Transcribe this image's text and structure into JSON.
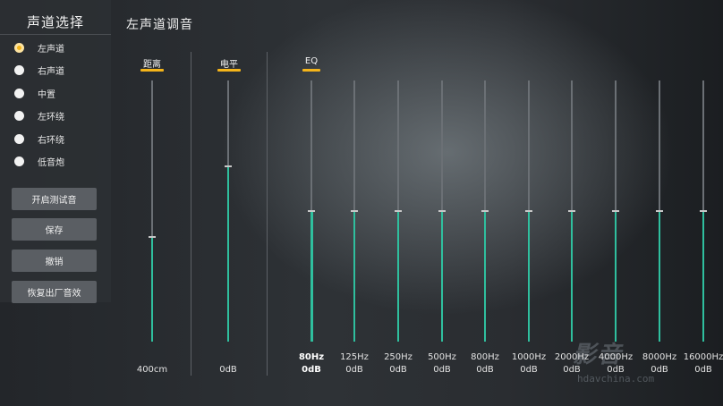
{
  "sidebar": {
    "title": "声道选择",
    "channels": [
      {
        "label": "左声道",
        "selected": true
      },
      {
        "label": "右声道",
        "selected": false
      },
      {
        "label": "中置",
        "selected": false
      },
      {
        "label": "左环绕",
        "selected": false
      },
      {
        "label": "右环绕",
        "selected": false
      },
      {
        "label": "低音炮",
        "selected": false
      }
    ],
    "buttons": [
      "开启测试音",
      "保存",
      "撤销",
      "恢复出厂音效"
    ]
  },
  "page_title": "左声道调音",
  "sections": {
    "distance": {
      "label": "距离",
      "value": "400cm",
      "level": 0.4
    },
    "level": {
      "label": "电平",
      "value": "0dB",
      "level": 0.67
    },
    "eq": {
      "label": "EQ",
      "bands": [
        {
          "freq": "80Hz",
          "value": "0dB",
          "level": 0.5
        },
        {
          "freq": "125Hz",
          "value": "0dB",
          "level": 0.5
        },
        {
          "freq": "250Hz",
          "value": "0dB",
          "level": 0.5
        },
        {
          "freq": "500Hz",
          "value": "0dB",
          "level": 0.5
        },
        {
          "freq": "800Hz",
          "value": "0dB",
          "level": 0.5
        },
        {
          "freq": "1000Hz",
          "value": "0dB",
          "level": 0.5
        },
        {
          "freq": "2000Hz",
          "value": "0dB",
          "level": 0.5
        },
        {
          "freq": "4000Hz",
          "value": "0dB",
          "level": 0.5
        },
        {
          "freq": "8000Hz",
          "value": "0dB",
          "level": 0.5
        },
        {
          "freq": "16000Hz",
          "value": "0dB",
          "level": 0.5
        }
      ]
    }
  },
  "watermark": {
    "logo": "影音",
    "url": "hdavchina.com"
  },
  "colors": {
    "accent": "#f4b41a",
    "fill": "#2fbf9e"
  }
}
